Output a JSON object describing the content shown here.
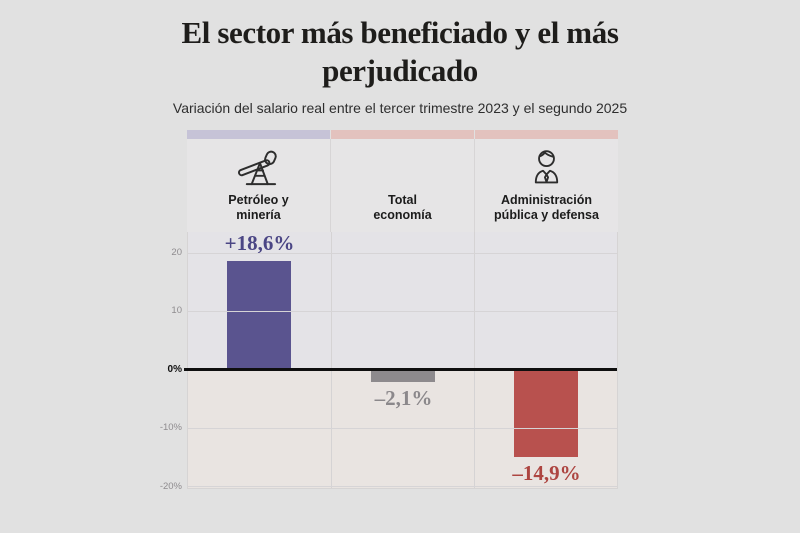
{
  "page": {
    "title": "El sector más beneficiado y el más perjudicado",
    "subtitle": "Variación del salario real entre el tercer trimestre 2023 y el segundo 2025"
  },
  "chart_data": {
    "type": "bar",
    "title": "El sector más beneficiado y el más perjudicado",
    "subtitle": "Variación del salario real entre el tercer trimestre 2023 y el segundo 2025",
    "unit": "%",
    "categories": [
      "Petróleo y minería",
      "Total economía",
      "Administración pública y defensa"
    ],
    "values": [
      18.6,
      -2.1,
      -14.9
    ],
    "ylim": [
      -20.2,
      23.6
    ],
    "grid": true,
    "legend": false,
    "zero_line": true,
    "bars": [
      {
        "label_line1": "Petróleo y",
        "label_line2": "minería",
        "icon": "pumpjack-icon",
        "value": 18.6,
        "display": "+18,6%",
        "bar_color": "#5a548f",
        "label_color": "#4b4685",
        "strip_color": "#c6c3d7"
      },
      {
        "label_line1": "Total",
        "label_line2": "economía",
        "icon": "",
        "value": -2.1,
        "display": "–2,1%",
        "bar_color": "#8d8a8d",
        "label_color": "#8b888b",
        "strip_color": "#e3c2be"
      },
      {
        "label_line1": "Administración",
        "label_line2": "pública y defensa",
        "icon": "person-icon",
        "value": -14.9,
        "display": "–14,9%",
        "bar_color": "#b8514e",
        "label_color": "#ad4541",
        "strip_color": "#e3c2be"
      }
    ],
    "yticks": [
      {
        "value": 20,
        "label": "20"
      },
      {
        "value": 10,
        "label": "10"
      },
      {
        "value": 0,
        "label": "0%"
      },
      {
        "value": -10,
        "label": "-10%"
      },
      {
        "value": -20,
        "label": "-20%"
      }
    ]
  }
}
